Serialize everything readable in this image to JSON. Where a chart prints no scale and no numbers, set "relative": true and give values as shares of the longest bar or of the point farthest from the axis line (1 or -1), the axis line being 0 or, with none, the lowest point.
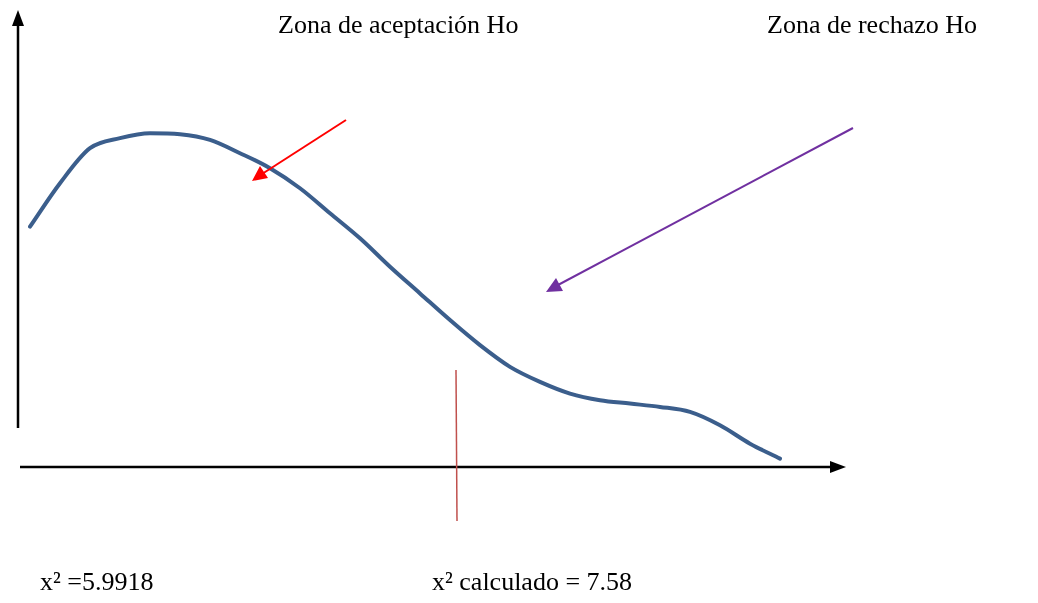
{
  "chart_data": {
    "type": "line",
    "relative": true,
    "categories": [
      null,
      null,
      null,
      null,
      null,
      null,
      null,
      null,
      null,
      null,
      null,
      null,
      null,
      null,
      null,
      null,
      null,
      null,
      null,
      null,
      null,
      null,
      null,
      null,
      null,
      null
    ],
    "series": [
      {
        "color": "#3b5e8c",
        "values": [
          0.72,
          0.85,
          0.955,
          0.985,
          1.0,
          0.997,
          0.98,
          0.94,
          0.895,
          0.835,
          0.76,
          0.685,
          0.6,
          0.52,
          0.44,
          0.365,
          0.3,
          0.255,
          0.22,
          0.2,
          0.19,
          0.18,
          0.165,
          0.125,
          0.07,
          0.025
        ]
      }
    ],
    "annotations": [
      "Zona de aceptación Ho",
      "Zona de rechazo Ho",
      "x² =5.9918",
      "x² calculado = 7.58"
    ]
  }
}
